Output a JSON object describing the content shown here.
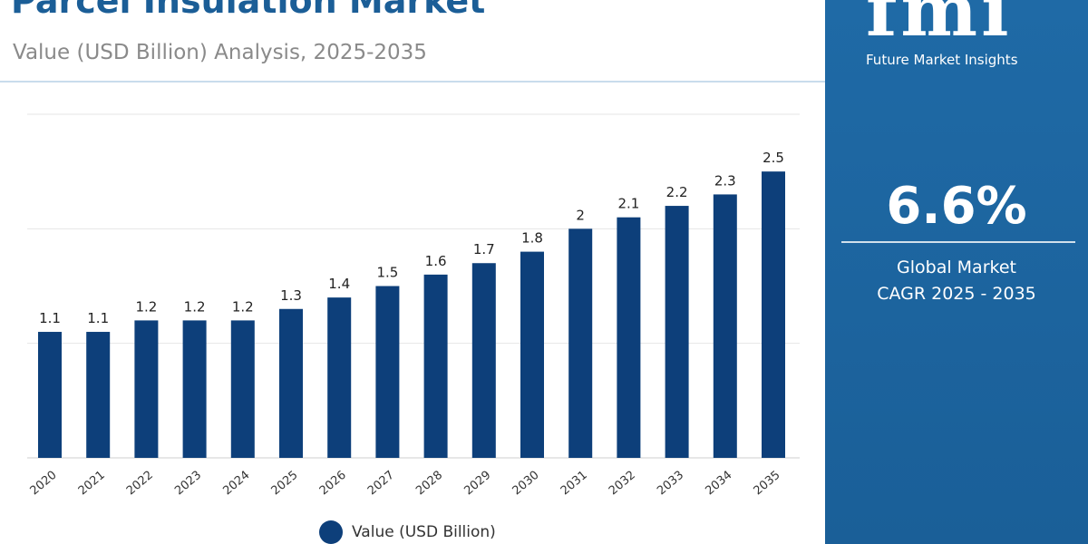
{
  "header": {
    "title": "Parcel Insulation Market",
    "subtitle": "Value (USD Billion) Analysis, 2025-2035"
  },
  "side_panel": {
    "logo": "fmi",
    "brand": "Future Market Insights",
    "cagr_value": "6.6%",
    "cagr_label_1": "Global Market",
    "cagr_label_2": "CAGR 2025 - 2035"
  },
  "colors": {
    "bar": "#0d3f7a",
    "panel": "#1f6aa6",
    "title": "#1b5e97"
  },
  "chart_data": {
    "type": "bar",
    "title": "Parcel Insulation Market",
    "subtitle": "Value (USD Billion) Analysis, 2025-2035",
    "categories": [
      "2020",
      "2021",
      "2022",
      "2023",
      "2024",
      "2025",
      "2026",
      "2027",
      "2028",
      "2029",
      "2030",
      "2031",
      "2032",
      "2033",
      "2034",
      "2035"
    ],
    "series": [
      {
        "name": "Value (USD Billion)",
        "values": [
          1.1,
          1.1,
          1.2,
          1.2,
          1.2,
          1.3,
          1.4,
          1.5,
          1.6,
          1.7,
          1.8,
          2,
          2.1,
          2.2,
          2.3,
          2.5
        ]
      }
    ],
    "ylim": [
      0,
      3
    ],
    "grid": true,
    "legend": "bottom",
    "data_labels": true
  }
}
